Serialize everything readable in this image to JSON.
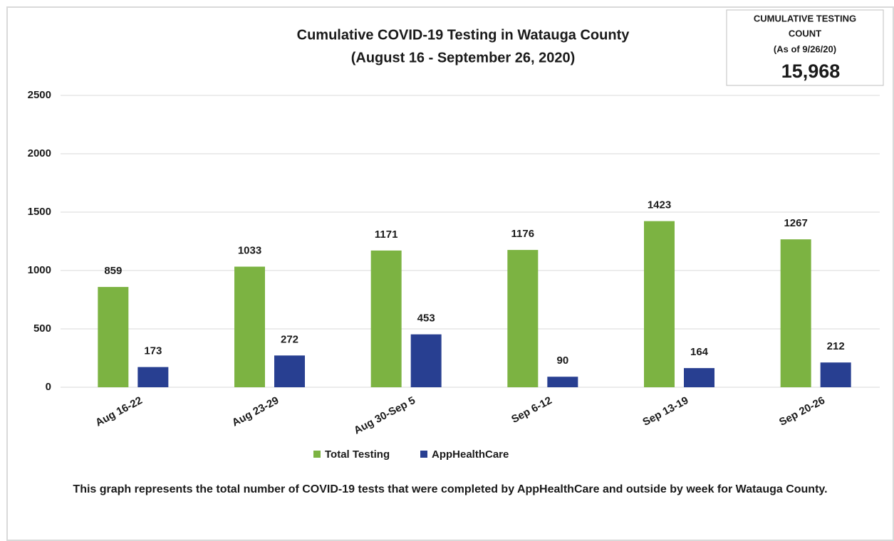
{
  "chart_data": {
    "type": "bar",
    "title": "Cumulative COVID-19 Testing in Watauga County",
    "subtitle": "(August 16 - September 26, 2020)",
    "annotation_box": {
      "lines": [
        "CUMULATIVE TESTING",
        "COUNT",
        "(As of 9/26/20)"
      ],
      "count": "15,968"
    },
    "footnote": "This graph represents the total number of COVID-19 tests that were completed by AppHealthCare and outside by week for Watauga County.",
    "categories": [
      "Aug 16-22",
      "Aug 23-29",
      "Aug 30-Sep 5",
      "Sep 6-12",
      "Sep 13-19",
      "Sep 20-26"
    ],
    "series": [
      {
        "name": "Total Testing",
        "color": "#7cb342",
        "values": [
          859,
          1033,
          1171,
          1176,
          1423,
          1267
        ]
      },
      {
        "name": "AppHealthCare",
        "color": "#283f91",
        "values": [
          173,
          272,
          453,
          90,
          164,
          212
        ]
      }
    ],
    "ylim": [
      0,
      2500
    ],
    "yticks": [
      0,
      500,
      1000,
      1500,
      2000,
      2500
    ],
    "grid": true,
    "legend": "bottom"
  }
}
